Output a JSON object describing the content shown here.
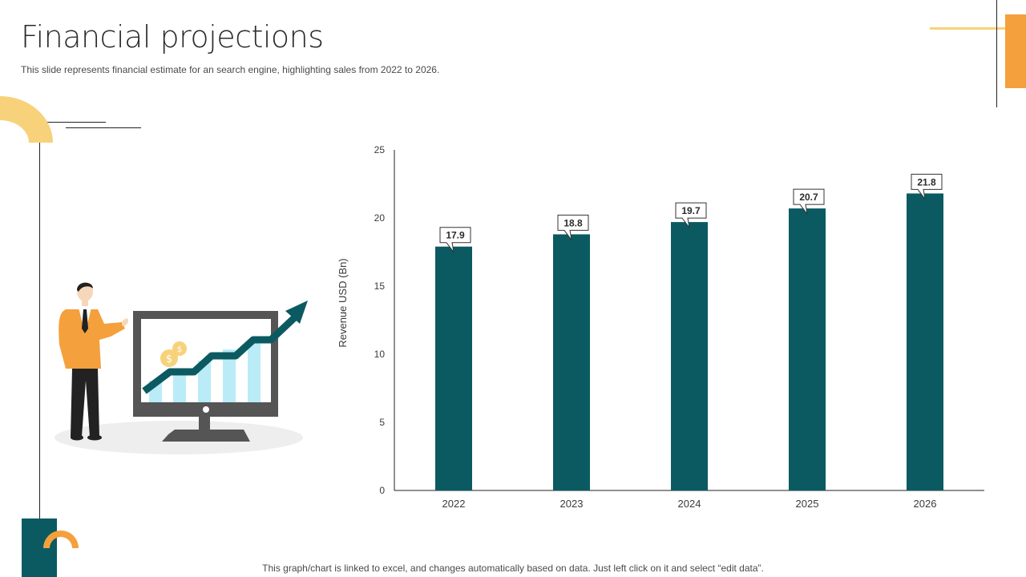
{
  "slide": {
    "title": "Financial projections",
    "subtitle": "This slide represents financial estimate for an search engine, highlighting sales from 2022 to 2026.",
    "footer": "This graph/chart is linked to excel,  and changes automatically based on data. Just left click on it and select “edit data”."
  },
  "colors": {
    "bar": "#0b5a62",
    "accent_orange": "#f4a03c",
    "accent_yellow": "#f7d27a",
    "axis": "#222222"
  },
  "chart_data": {
    "type": "bar",
    "title": "",
    "categories": [
      "2022",
      "2023",
      "2024",
      "2025",
      "2026"
    ],
    "values": [
      17.9,
      18.8,
      19.7,
      20.7,
      21.8
    ],
    "value_labels": [
      "17.9",
      "18.8",
      "19.7",
      "20.7",
      "21.8"
    ],
    "xlabel": "",
    "ylabel": "Revenue USD (Bn)",
    "ylim": [
      0,
      25
    ],
    "yticks": [
      "0",
      "5",
      "10",
      "15",
      "20",
      "25"
    ],
    "grid": false
  }
}
